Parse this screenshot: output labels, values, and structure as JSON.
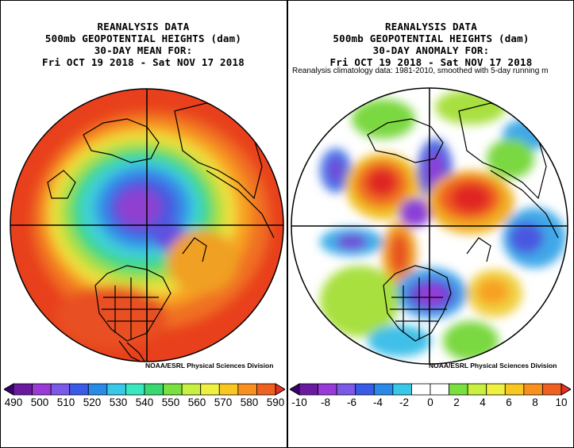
{
  "left_panel": {
    "title_lines": [
      "REANALYSIS DATA",
      "500mb GEOPOTENTIAL HEIGHTS (dam)",
      "30-DAY MEAN FOR:",
      "Fri OCT 19 2018 - Sat NOV 17 2018"
    ],
    "credit": "NOAA/ESRL Physical Sciences Division",
    "colorbar_labels": [
      "490",
      "500",
      "510",
      "520",
      "530",
      "540",
      "550",
      "560",
      "570",
      "580",
      "590"
    ],
    "colorbar_colors": [
      "#3a0070",
      "#6a1aa0",
      "#9a3ad8",
      "#7a5ae8",
      "#3a5ae8",
      "#2a8ae8",
      "#3ac8e8",
      "#3ae8c0",
      "#3ad870",
      "#7ae040",
      "#c8f040",
      "#f0f040",
      "#f8c820",
      "#f89020",
      "#f06020",
      "#e83020"
    ]
  },
  "right_panel": {
    "title_lines": [
      "REANALYSIS DATA",
      "500mb GEOPOTENTIAL HEIGHTS (dam)",
      "30-DAY ANOMALY FOR:",
      "Fri OCT 19 2018 - Sat NOV 17 2018"
    ],
    "subnote": "Reanalysis climatology data: 1981-2010, smoothed with 5-day running m",
    "credit": "NOAA/ESRL Physical Sciences Division",
    "colorbar_labels": [
      "-10",
      "-8",
      "-6",
      "-4",
      "-2",
      "0",
      "2",
      "4",
      "6",
      "8",
      "10"
    ],
    "colorbar_colors": [
      "#3a0070",
      "#6a1aa0",
      "#9a3ad8",
      "#7a5ae8",
      "#3a5ae8",
      "#2a8ae8",
      "#3ac8e8",
      "#ffffff",
      "#ffffff",
      "#7ae040",
      "#c8f040",
      "#f0f040",
      "#f8c820",
      "#f89020",
      "#f06020",
      "#e83020"
    ]
  }
}
